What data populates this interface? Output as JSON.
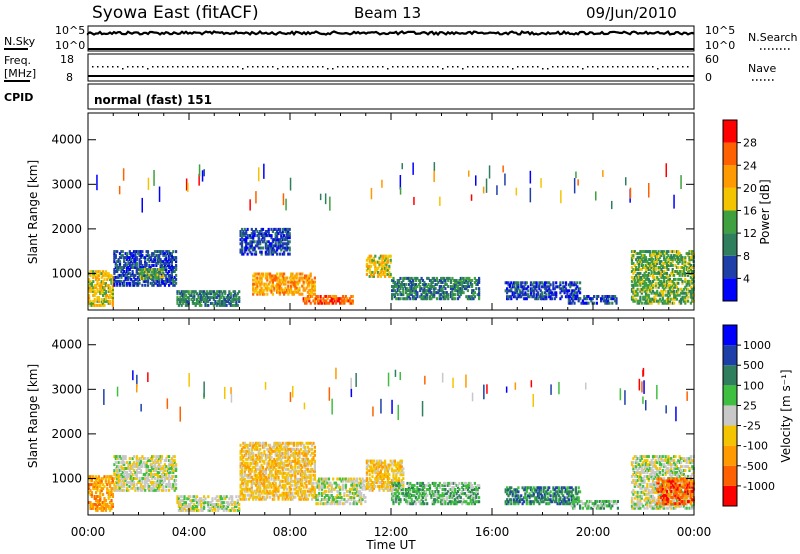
{
  "header": {
    "station": "Syowa East (fitACF)",
    "beam": "Beam 13",
    "date": "09/Jun/2010"
  },
  "panels": {
    "nsky": {
      "label": "N.Sky",
      "tick_top": "10^5",
      "tick_bottom": "10^0",
      "right_label": "N.Search",
      "right_tick_top": "10^5",
      "right_tick_bottom": "10^0"
    },
    "freq": {
      "label_line1": "Freq.",
      "label_line2": "[MHz]",
      "tick_top": "18",
      "tick_bottom": "8",
      "right_label": "Nave",
      "right_tick_top": "60",
      "right_tick_bottom": "0"
    },
    "cpid": {
      "label": "CPID",
      "program": "normal (fast) 151"
    }
  },
  "colors": {
    "power": [
      "#0000ff",
      "#1f3fa8",
      "#2f7f5f",
      "#3fa03f",
      "#f5c400",
      "#ff9a00",
      "#ff6000",
      "#ff0000"
    ],
    "velocity": [
      "#ff0000",
      "#ff6000",
      "#ff9a00",
      "#f5c400",
      "#c8c8c8",
      "#3fbf3f",
      "#2f7f5f",
      "#1f3fa8",
      "#0000ff"
    ]
  },
  "chart_data": [
    {
      "type": "heatmap",
      "name": "power",
      "ylabel": "Slant Range [km]",
      "xlabel": "",
      "y_ticks": [
        "1000",
        "2000",
        "3000",
        "4000"
      ],
      "x_ticks": [
        "00:00",
        "04:00",
        "08:00",
        "12:00",
        "16:00",
        "20:00",
        "00:00"
      ],
      "xlim": [
        0,
        24
      ],
      "ylim": [
        180,
        4600
      ],
      "colorbar": {
        "label": "Power [dB]",
        "ticks": [
          "4",
          "8",
          "12",
          "16",
          "20",
          "24",
          "28"
        ]
      },
      "regions": [
        {
          "x": [
            0.0,
            1.0
          ],
          "y": [
            250,
            1050
          ],
          "level": 4
        },
        {
          "x": [
            1.0,
            3.5
          ],
          "y": [
            700,
            1500
          ],
          "level": 1
        },
        {
          "x": [
            2.0,
            3.0
          ],
          "y": [
            850,
            1100
          ],
          "level": 3
        },
        {
          "x": [
            3.5,
            6.0
          ],
          "y": [
            250,
            600
          ],
          "level": 2
        },
        {
          "x": [
            6.0,
            8.0
          ],
          "y": [
            1400,
            2000
          ],
          "level": 1
        },
        {
          "x": [
            6.5,
            9.0
          ],
          "y": [
            500,
            1000
          ],
          "level": 5
        },
        {
          "x": [
            8.5,
            10.5
          ],
          "y": [
            300,
            500
          ],
          "level": 6
        },
        {
          "x": [
            11.0,
            12.0
          ],
          "y": [
            900,
            1400
          ],
          "level": 4
        },
        {
          "x": [
            12.0,
            15.5
          ],
          "y": [
            400,
            900
          ],
          "level": 2
        },
        {
          "x": [
            16.5,
            19.5
          ],
          "y": [
            400,
            800
          ],
          "level": 1
        },
        {
          "x": [
            19.0,
            21.0
          ],
          "y": [
            300,
            500
          ],
          "level": 1
        },
        {
          "x": [
            21.5,
            24.0
          ],
          "y": [
            300,
            1500
          ],
          "level": 3
        }
      ]
    },
    {
      "type": "heatmap",
      "name": "velocity",
      "ylabel": "Slant Range [km]",
      "xlabel": "Time UT",
      "y_ticks": [
        "1000",
        "2000",
        "3000",
        "4000"
      ],
      "x_ticks": [
        "00:00",
        "04:00",
        "08:00",
        "12:00",
        "16:00",
        "20:00",
        "00:00"
      ],
      "xlim": [
        0,
        24
      ],
      "ylim": [
        180,
        4600
      ],
      "colorbar": {
        "label": "Velocity [m s⁻¹]",
        "ticks": [
          "1000",
          "500",
          "100",
          "25",
          "-25",
          "-100",
          "-500",
          "-1000"
        ]
      },
      "regions": [
        {
          "x": [
            0.0,
            1.0
          ],
          "y": [
            250,
            1050
          ],
          "level": 2
        },
        {
          "x": [
            1.0,
            3.5
          ],
          "y": [
            700,
            1500
          ],
          "level": 4
        },
        {
          "x": [
            3.5,
            6.0
          ],
          "y": [
            250,
            600
          ],
          "level": 4
        },
        {
          "x": [
            6.0,
            9.0
          ],
          "y": [
            500,
            1800
          ],
          "level": 3
        },
        {
          "x": [
            9.0,
            11.0
          ],
          "y": [
            400,
            1000
          ],
          "level": 4
        },
        {
          "x": [
            11.0,
            12.5
          ],
          "y": [
            700,
            1400
          ],
          "level": 3
        },
        {
          "x": [
            12.0,
            15.5
          ],
          "y": [
            400,
            900
          ],
          "level": 5
        },
        {
          "x": [
            16.5,
            19.5
          ],
          "y": [
            400,
            800
          ],
          "level": 6
        },
        {
          "x": [
            19.0,
            21.0
          ],
          "y": [
            300,
            500
          ],
          "level": 5
        },
        {
          "x": [
            21.5,
            24.0
          ],
          "y": [
            300,
            1500
          ],
          "level": 4
        },
        {
          "x": [
            22.5,
            24.0
          ],
          "y": [
            400,
            1000
          ],
          "level": 1
        }
      ]
    }
  ]
}
